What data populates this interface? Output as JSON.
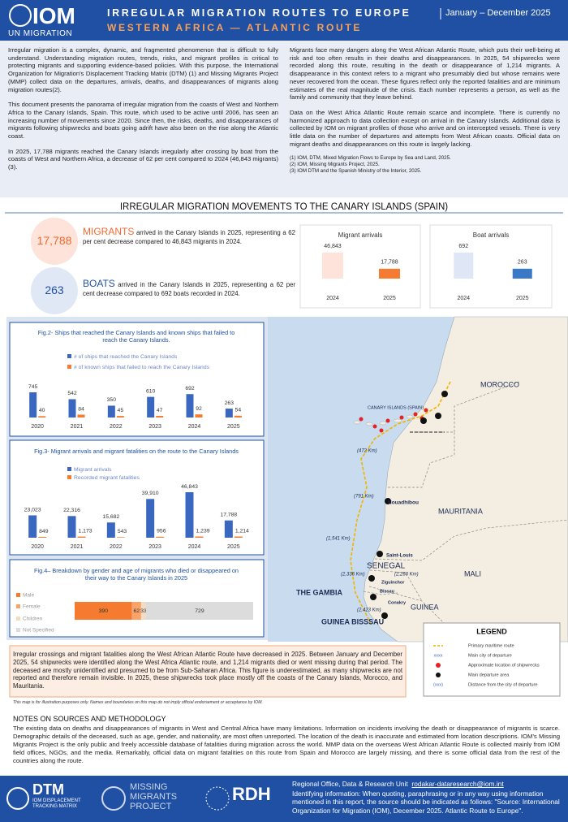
{
  "header": {
    "logo": "IOM",
    "logo_sub": "UN MIGRATION",
    "title": "IRREGULAR MIGRATION ROUTES TO EUROPE",
    "subtitle": "WESTERN AFRICA — ATLANTIC ROUTE",
    "period": "January – December 2025"
  },
  "intro": {
    "left": [
      "Irregular migration is a complex, dynamic, and fragmented phenomenon that is difficult to fully understand. Understanding migration routes, trends, risks, and migrant profiles is critical to protecting migrants and supporting evidence-based policies. With this purpose, the International Organization for Migration's Displacement Tracking Matrix (DTM) (1) and Missing Migrants Project (MMP) collect data on the departures, arrivals, deaths, and disappearances of migrants along migration routes(2).",
      "This document presents the panorama of irregular migration from the coasts of West and Northern Africa to the Canary Islands, Spain. This route, which used to be active until 2006, has seen an increasing number of movements since 2020. Since then, the risks, deaths, and disappearances of migrants following shipwrecks and boats going adrift have also been on the rise along the Atlantic coast.",
      "In 2025, 17,788 migrants reached the Canary Islands irregularly after crossing by boat from the coasts of West and Northern Africa, a decrease of 62 per cent compared to 2024 (46,843 migrants)(3)."
    ],
    "right": [
      "Migrants face many dangers along the West African Atlantic Route, which puts their well-being at risk and too often results in their deaths and disappearances. In 2025, 54 shipwrecks were recorded along this route, resulting in the death or disappearance of 1,214 migrants. A disappearance in this context refers to a migrant who presumably died but whose remains were never recovered from the ocean. These figures reflect only the reported fatalities and are minimum estimates of the real magnitude of the crisis. Each number represents a person, as well as the family and community that they leave behind.",
      "Data on the West Africa Atlantic Route remain scarce and incomplete. There is currently no harmonized approach to data collection except on arrival in the Canary Islands. Additional data is collected by IOM on migrant profiles of those who arrive and on intercepted vessels. There is very little data on the number of departures and attempts from West African coasts. Official data on migrant deaths and disappearances on this route is largely lacking."
    ],
    "footnotes": [
      "(1) IOM, DTM, Mixed Migration Flows to Europe by Sea and Land, 2025.",
      "(2) IOM, Missing Migrants Project, 2025.",
      "(3) IOM DTM and the Spanish Ministry of the Interior, 2025."
    ]
  },
  "section_title": "IRREGULAR MIGRATION MOVEMENTS TO THE CANARY ISLANDS (SPAIN)",
  "kpis": [
    {
      "value": "17,788",
      "label": "MIGRANTS",
      "text": " arrived in the Canary Islands in 2025, representing a 62 per cent decrease compared to 46,843 migrants in 2024."
    },
    {
      "value": "263",
      "label": "BOATS",
      "text": " arrived in the Canary Islands in 2025, representing a 62 per cent decrease compared to 692 boats recorded in 2024."
    }
  ],
  "chart_data": [
    {
      "type": "bar",
      "title": "Migrant arrivals",
      "categories": [
        "2024",
        "2025"
      ],
      "values": [
        46843,
        17788
      ],
      "value_labels": [
        "46,843",
        "17,788"
      ],
      "colors": [
        "#fde3da",
        "#f47b2f"
      ]
    },
    {
      "type": "bar",
      "title": "Boat arrivals",
      "categories": [
        "2024",
        "2025"
      ],
      "values": [
        692,
        263
      ],
      "colors": [
        "#dfe6f5",
        "#3a78c8"
      ]
    },
    {
      "type": "bar",
      "title": "Fig.2- Ships that reached the Canary Islands and known ships that failed to reach the Canary Islands.",
      "categories": [
        "2020",
        "2021",
        "2022",
        "2023",
        "2024",
        "2025"
      ],
      "series": [
        {
          "name": "# of ships that reached the Canary Islands",
          "color": "#3a68c0",
          "values": [
            745,
            542,
            350,
            610,
            692,
            263
          ]
        },
        {
          "name": "# of known ships that failed to reach the Canary Islands",
          "color": "#f47b2f",
          "values": [
            40,
            84,
            45,
            47,
            92,
            54
          ]
        }
      ]
    },
    {
      "type": "bar",
      "title": "Fig.3- Migrant arrivals and migrant fatalities on the route to the Canary Islands",
      "categories": [
        "2020",
        "2021",
        "2022",
        "2023",
        "2024",
        "2025"
      ],
      "series": [
        {
          "name": "Migrant arrivals",
          "color": "#3a68c0",
          "values": [
            23023,
            22316,
            15682,
            39910,
            46843,
            17788
          ],
          "value_labels": [
            "23,023",
            "22,316",
            "15,682",
            "39,910",
            "46,843",
            "17,788"
          ]
        },
        {
          "name": "Recorded migrant fatalities",
          "color": "#f47b2f",
          "values": [
            849,
            1173,
            543,
            956,
            1239,
            1214
          ],
          "value_labels": [
            "849",
            "1,173",
            "543",
            "956",
            "1,239",
            "1,214"
          ]
        }
      ]
    },
    {
      "type": "stacked-bar",
      "title": "Fig.4– Breakdown by gender and age of migrants who died or disappeared on their way to the Canary Islands in 2025",
      "series": [
        {
          "name": "Male",
          "color": "#f47b2f",
          "values": [
            390
          ]
        },
        {
          "name": "Female",
          "color": "#f9a36a",
          "values": [
            62
          ]
        },
        {
          "name": "Children",
          "color": "#f2dcc4",
          "values": [
            33
          ]
        },
        {
          "name": "Not Specified",
          "color": "#dcdcdc",
          "values": [
            729
          ]
        }
      ]
    }
  ],
  "map": {
    "labels": [
      "MOROCCO",
      "CANARY ISLANDS (SPAIN)",
      "(472 Km)",
      "(791 Km)",
      "Nouadhibou",
      "MAURITANIA",
      "(1,541 Km)",
      "Saint-Louis",
      "SENEGAL",
      "(2,260 Km)",
      "(2,336 Km)",
      "Ziguinchor",
      "Bissau",
      "THE GAMBIA",
      "(2,423 Km)",
      "Conakry",
      "GUINEA",
      "MALI",
      "GUINEA BISSSAU"
    ],
    "legend_title": "LEGEND",
    "legend": [
      {
        "label": "Primary maritime route"
      },
      {
        "label": "Main city of departure",
        "symbol": "xxxx"
      },
      {
        "label": "Approximate location of shipwrecks"
      },
      {
        "label": "Main departure area"
      },
      {
        "label": "Distance from the city of departure",
        "symbol": "(xxx)"
      }
    ]
  },
  "summary": "Irregular crossings and migrant fatalities along the West African Atlantic Route have decreased in 2025. Between January and December 2025, 54 shipwrecks were identified along the West Africa Atlantic route, and 1,214 migrants died or went missing during that period. The deceased are mostly unidentified and presumed to be from Sub-Saharan Africa. This figure is underestimated, as many shipwrecks are not reported and therefore remain invisible. In 2025, these shipwrecks took place mostly off the coasts of the Canary Islands, Morocco, and Mauritania.",
  "disclaimer": "This map is for illustration purposes only. Names and boundaries on this map do not imply official endorsement or acceptance by IOM.",
  "notes": {
    "title": "NOTES ON SOURCES AND METHODOLOGY",
    "text": "The existing data on deaths and disappearances of migrants in West and Central Africa have many limitations. Information on incidents involving the death or disappearance of migrants is scarce. Demographic details of the deceased, such as age, gender, and nationality, are most often unreported. The location of the death is inaccurate and estimated from location descriptions. IOM's Missing Migrants Project is the only public and freely accessible database of fatalities during migration across the world. MMP data on the overseas West African Atlantic Route is collected mainly from IOM field offices, NGOs, and the media. Remarkably, official data on migrant fatalities on this route from Spain and Morocco are largely missing, and there is some official data from the rest of the countries along the route."
  },
  "footer": {
    "dtm": "DTM",
    "dtm_sub": "IOM DISPLACEMENT TRACKING MATRIX",
    "mmp": "MISSING MIGRANTS PROJECT",
    "rdh": "RDH",
    "office": "Regional Office, Data & Research Unit",
    "email": "rodakar-dataresearch@iom.int",
    "citation": "Identifying information: When quoting, paraphrasing or in any way using information mentioned in this report, the source should be indicated as follows: \"Source: International Organization for Migration (IOM), December 2025. Atlantic Route to Europe\"."
  }
}
